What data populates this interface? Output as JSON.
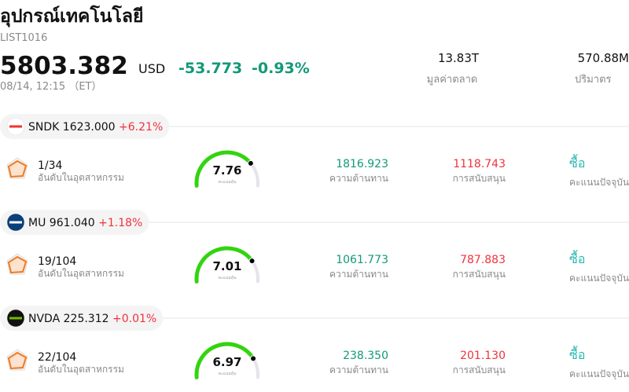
{
  "header": {
    "title": "อุปกรณ์เทคโนโลยี",
    "code": "LIST1016",
    "price": "5803.382",
    "currency": "USD",
    "change": "-53.773",
    "change_pct": "-0.93%",
    "time": "08/14, 12:15 （ET）",
    "market_cap": "13.83T",
    "market_cap_label": "มูลค่าตลาด",
    "volume": "570.88M",
    "volume_label": "ปริมาตร"
  },
  "stocks": [
    {
      "ticker": "SNDK",
      "price": "1623.000",
      "change": "+6.21%",
      "rank": "1/34",
      "rank_label": "อันดับในอุตสาหกรรม",
      "score": "7.76",
      "score_label": "คะแนนหุ้น",
      "resistance": "1816.923",
      "resistance_label": "ความต้านทาน",
      "support": "1118.743",
      "support_label": "การสนับสนุน",
      "signal": "ซื้อ",
      "signal_label": "คะแนนปัจจุบัน"
    },
    {
      "ticker": "MU",
      "price": "961.040",
      "change": "+1.18%",
      "rank": "19/104",
      "rank_label": "อันดับในอุตสาหกรรม",
      "score": "7.01",
      "score_label": "คะแนนหุ้น",
      "resistance": "1061.773",
      "resistance_label": "ความต้านทาน",
      "support": "787.883",
      "support_label": "การสนับสนุน",
      "signal": "ซื้อ",
      "signal_label": "คะแนนปัจจุบัน"
    },
    {
      "ticker": "NVDA",
      "price": "225.312",
      "change": "+0.01%",
      "rank": "22/104",
      "rank_label": "อันดับในอุตสาหกรรม",
      "score": "6.97",
      "score_label": "คะแนนหุ้น",
      "resistance": "238.350",
      "resistance_label": "ความต้านทาน",
      "support": "201.130",
      "support_label": "การสนับสนุน",
      "signal": "ซื้อ",
      "signal_label": "คะแนนปัจจุบัน"
    }
  ]
}
